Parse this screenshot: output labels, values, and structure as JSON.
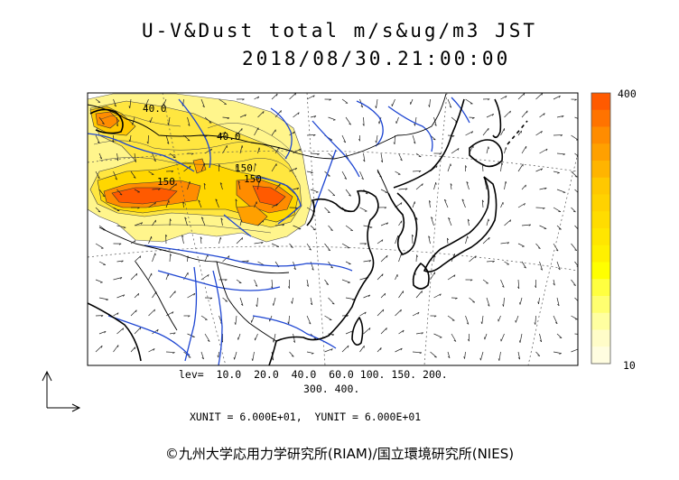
{
  "header": {
    "title_line1": "U-V&Dust total m/s&ug/m3 JST",
    "title_line2": "2018/08/30.21:00:00"
  },
  "colorbar": {
    "max_label": "400",
    "min_label": "10",
    "colors": [
      "#ff5a00",
      "#ff7300",
      "#ff8c00",
      "#ffa000",
      "#ffb400",
      "#ffc800",
      "#ffd200",
      "#ffdc00",
      "#ffe600",
      "#fff000",
      "#ffff00",
      "#ffff40",
      "#ffff70",
      "#ffffa0",
      "#fffcc8",
      "#fffde0"
    ]
  },
  "legend": {
    "levels_line1": "lev=  10.0  20.0  40.0  60.0 100. 150. 200.",
    "levels_line2": "300. 400."
  },
  "units_text": "XUNIT = 6.000E+01,  YUNIT = 6.000E+01",
  "contour_labels": [
    "40.0",
    "40.0",
    "150",
    "150",
    "150"
  ],
  "copyright": "©九州大学応用力学研究所(RIAM)/国立環境研究所(NIES)",
  "colors": {
    "coast": "#000000",
    "river": "#1e46d2",
    "dust_low": "#fff58c",
    "dust_mid": "#ffe640",
    "dust_high": "#ff8c00",
    "dust_peak": "#ff5a00"
  }
}
